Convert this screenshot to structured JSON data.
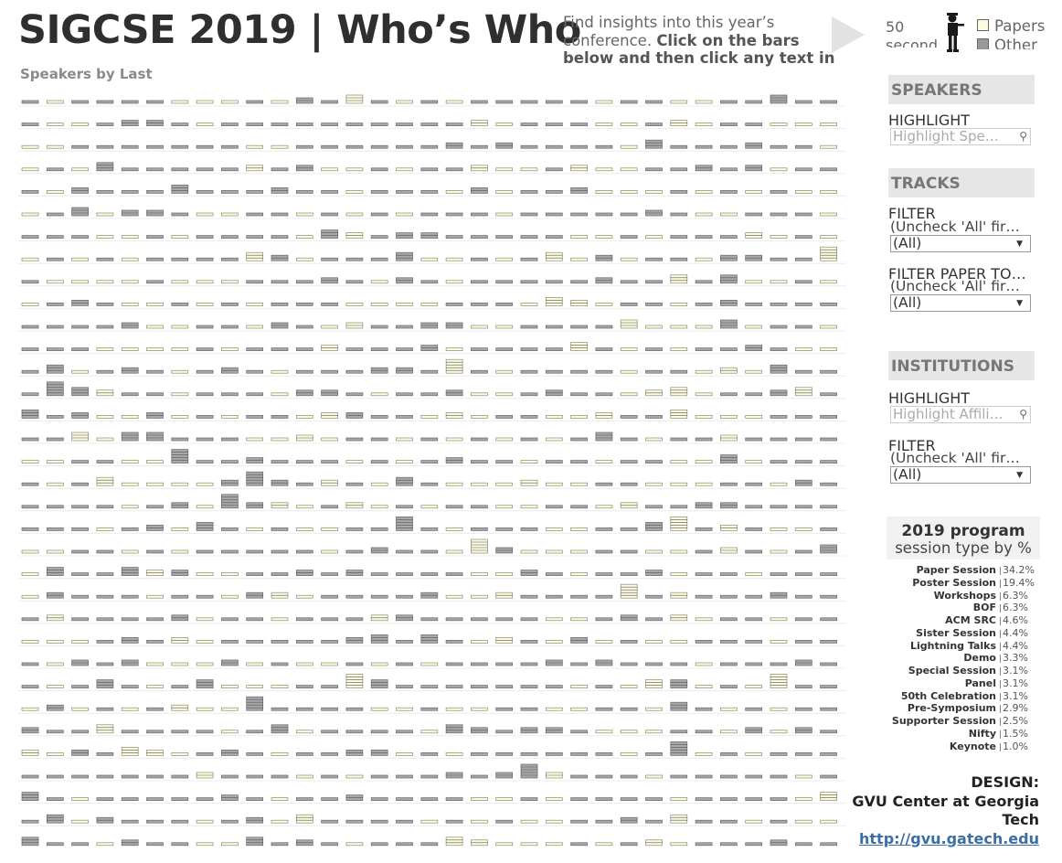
{
  "header": {
    "title": "SIGCSE 2019 | Who’s Who",
    "intro_plain": "Find insights into this year’s conference. ",
    "intro_bold": "Click on the bars below and then click any text in the",
    "counter_number": "50",
    "counter_unit": "second",
    "legend": [
      {
        "label": "Papers",
        "color": "#fdfbe0"
      },
      {
        "label": "Other",
        "color": "#999999"
      }
    ],
    "icons": [
      "play-arrow-icon",
      "presenter-figure-icon"
    ]
  },
  "chart_subtitle": "Speakers by Last",
  "panel": {
    "speakers_header": "SPEAKERS",
    "speakers_highlight_label": "HIGHLIGHT",
    "speakers_highlight_placeholder": "Highlight Spe…",
    "tracks_header": "TRACKS",
    "tracks_filter_label": "FILTER",
    "tracks_filter_note": "(Uncheck 'All' fir…",
    "tracks_filter_value": "(All)",
    "tracks_filter2_label": "FILTER PAPER TO…",
    "tracks_filter2_note": "(Uncheck 'All' fir…",
    "tracks_filter2_value": "(All)",
    "institutions_header": "INSTITUTIONS",
    "inst_highlight_label": "HIGHLIGHT",
    "inst_highlight_placeholder": "Highlight Affili…",
    "inst_filter_label": "FILTER",
    "inst_filter_note": "(Uncheck 'All' fir…",
    "inst_filter_value": "(All)"
  },
  "program": {
    "title_line1": "2019 program",
    "title_line2": "session type by %",
    "rows": [
      {
        "name": "Paper Session",
        "pct": "34.2%"
      },
      {
        "name": "Poster Session",
        "pct": "19.4%"
      },
      {
        "name": "Workshops",
        "pct": "6.3%"
      },
      {
        "name": "BOF",
        "pct": "6.3%"
      },
      {
        "name": "ACM SRC",
        "pct": "4.6%"
      },
      {
        "name": "Sister Session",
        "pct": "4.4%"
      },
      {
        "name": "Lightning Talks",
        "pct": "4.4%"
      },
      {
        "name": "Demo",
        "pct": "3.3%"
      },
      {
        "name": "Special Session",
        "pct": "3.1%"
      },
      {
        "name": "Panel",
        "pct": "3.1%"
      },
      {
        "name": "50th Celebration",
        "pct": "3.1%"
      },
      {
        "name": "Pre-Symposium",
        "pct": "2.9%"
      },
      {
        "name": "Supporter Session",
        "pct": "2.5%"
      },
      {
        "name": "Nifty",
        "pct": "1.5%"
      },
      {
        "name": "Keynote",
        "pct": "1.0%"
      }
    ]
  },
  "design": {
    "label": "DESIGN:",
    "org": "GVU Center at Georgia Tech",
    "link": "http://gvu.gatech.edu"
  }
}
